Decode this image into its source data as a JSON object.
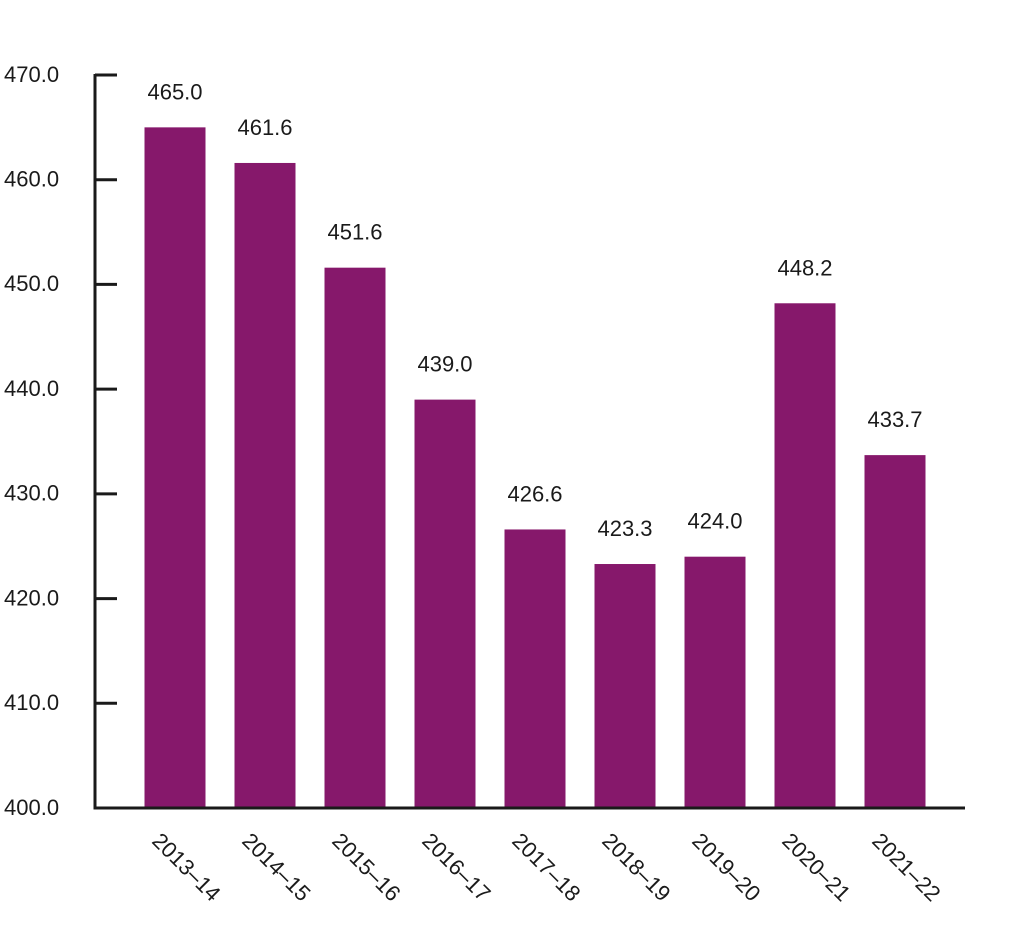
{
  "chart_data": {
    "type": "bar",
    "categories": [
      "2013–14",
      "2014–15",
      "2015–16",
      "2016–17",
      "2017–18",
      "2018–19",
      "2019–20",
      "2020–21",
      "2021–22"
    ],
    "values": [
      465.0,
      461.6,
      451.6,
      439.0,
      426.6,
      423.3,
      424.0,
      448.2,
      433.7
    ],
    "value_labels": [
      "465.0",
      "461.6",
      "451.6",
      "439.0",
      "426.6",
      "423.3",
      "424.0",
      "448.2",
      "433.7"
    ],
    "y_ticks": [
      400,
      410,
      420,
      430,
      440,
      450,
      460,
      470
    ],
    "y_tick_labels": [
      "400.0",
      "410.0",
      "420.0",
      "430.0",
      "440.0",
      "450.0",
      "460.0",
      "470.0"
    ],
    "ylim": [
      400,
      470
    ],
    "title": "",
    "xlabel": "",
    "ylabel": "",
    "grid": false,
    "colors": {
      "bar": "#86186B",
      "axis": "#1a1a1a"
    }
  }
}
